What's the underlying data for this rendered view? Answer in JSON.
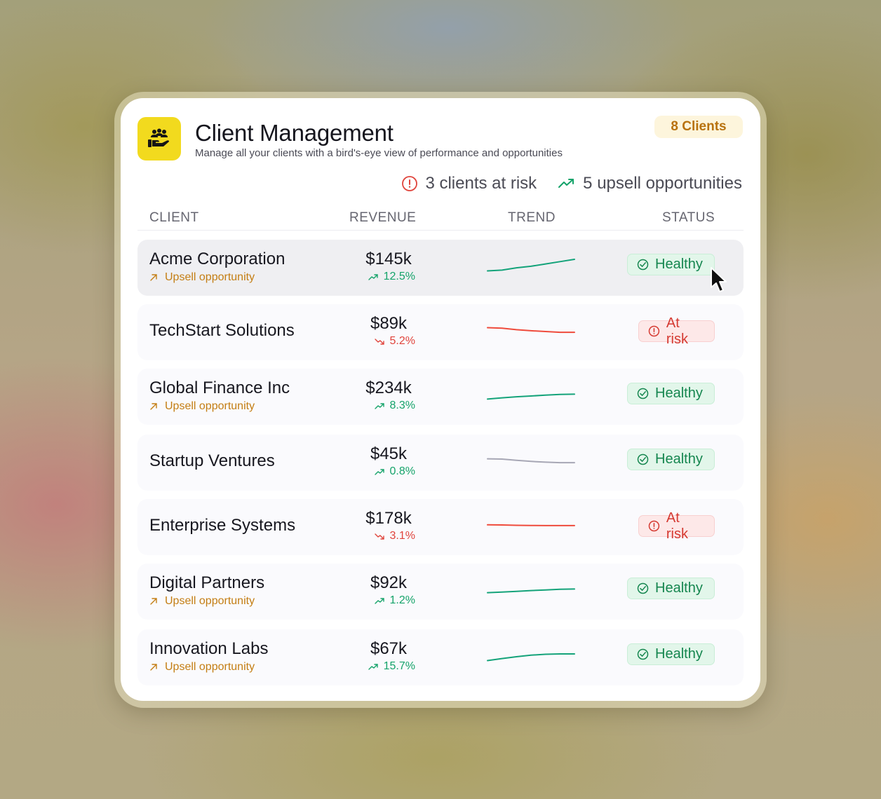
{
  "header": {
    "title": "Client Management",
    "subtitle": "Manage all your clients with a bird's-eye view of performance and opportunities",
    "client_count_label": "8 Clients",
    "logo_icon": "users-hand-icon",
    "logo_color": "#f2da1e"
  },
  "summary": {
    "at_risk_label": "3 clients at risk",
    "upsell_label": "5 upsell opportunities"
  },
  "table": {
    "columns": [
      "CLIENT",
      "REVENUE",
      "TREND",
      "STATUS"
    ],
    "rows": [
      {
        "name": "Acme Corporation",
        "upsell": "Upsell opportunity",
        "revenue": "$145k",
        "change": "12.5%",
        "direction": "up",
        "trend": [
          0.25,
          0.3,
          0.45,
          0.55,
          0.7,
          0.85,
          1.0
        ],
        "trend_color": "#14a37a",
        "status": "Healthy"
      },
      {
        "name": "TechStart Solutions",
        "upsell": "",
        "revenue": "$89k",
        "change": "5.2%",
        "direction": "down",
        "trend": [
          0.75,
          0.72,
          0.62,
          0.55,
          0.5,
          0.45,
          0.45
        ],
        "trend_color": "#ef4b3c",
        "status": "At risk"
      },
      {
        "name": "Global Finance Inc",
        "upsell": "Upsell opportunity",
        "revenue": "$234k",
        "change": "8.3%",
        "direction": "up",
        "trend": [
          0.3,
          0.38,
          0.45,
          0.5,
          0.56,
          0.6,
          0.62
        ],
        "trend_color": "#14a37a",
        "status": "Healthy"
      },
      {
        "name": "Startup Ventures",
        "upsell": "",
        "revenue": "$45k",
        "change": "0.8%",
        "direction": "up",
        "trend": [
          0.7,
          0.68,
          0.6,
          0.53,
          0.48,
          0.45,
          0.45
        ],
        "trend_color": "#a7a7b5",
        "status": "Healthy"
      },
      {
        "name": "Enterprise Systems",
        "upsell": "",
        "revenue": "$178k",
        "change": "3.1%",
        "direction": "down",
        "trend": [
          0.6,
          0.59,
          0.57,
          0.56,
          0.55,
          0.55,
          0.55
        ],
        "trend_color": "#ef4b3c",
        "status": "At risk"
      },
      {
        "name": "Digital Partners",
        "upsell": "Upsell opportunity",
        "revenue": "$92k",
        "change": "1.2%",
        "direction": "up",
        "trend": [
          0.38,
          0.42,
          0.47,
          0.52,
          0.56,
          0.6,
          0.62
        ],
        "trend_color": "#14a37a",
        "status": "Healthy"
      },
      {
        "name": "Innovation Labs",
        "upsell": "Upsell opportunity",
        "revenue": "$67k",
        "change": "15.7%",
        "direction": "up",
        "trend": [
          0.25,
          0.38,
          0.5,
          0.6,
          0.66,
          0.68,
          0.68
        ],
        "trend_color": "#14a37a",
        "status": "Healthy"
      }
    ]
  },
  "colors": {
    "healthy": "#15864f",
    "risk": "#d53a32",
    "upsell": "#c47e14"
  }
}
